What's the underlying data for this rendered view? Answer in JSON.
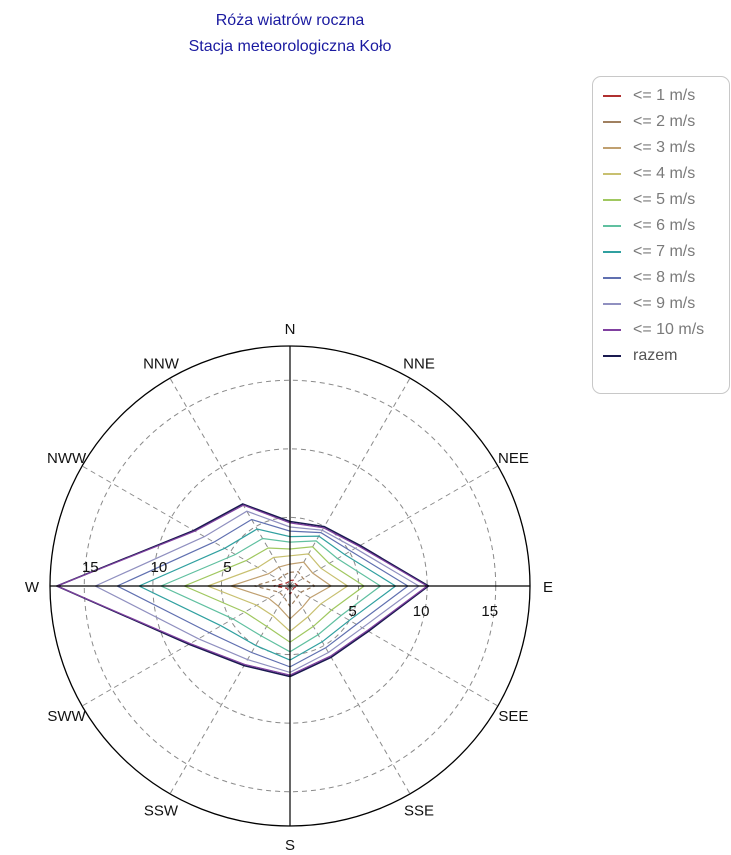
{
  "title_line1": "Róża wiatrów roczna",
  "title_line2": "Stacja meteorologiczna Koło",
  "chart_data": {
    "type": "radar",
    "directions": [
      "N",
      "NNE",
      "NEE",
      "E",
      "SEE",
      "SSE",
      "S",
      "SSW",
      "SWW",
      "W",
      "NWW",
      "NNW"
    ],
    "radial_ticks": [
      5,
      10,
      15
    ],
    "rmax": 17.5,
    "grid": true,
    "legend_position": "top-right",
    "series": [
      {
        "name": "<= 1 m/s",
        "color": "#b03030",
        "values": [
          0.4,
          0.5,
          0.4,
          0.6,
          0.3,
          0.4,
          0.6,
          0.3,
          0.3,
          1.2,
          0.4,
          0.3
        ]
      },
      {
        "name": "<= 2 m/s",
        "color": "#a08060",
        "values": [
          1.0,
          1.2,
          1.1,
          1.8,
          0.9,
          1.0,
          1.5,
          0.9,
          0.9,
          2.6,
          1.0,
          0.9
        ]
      },
      {
        "name": "<= 3 m/s",
        "color": "#c0a070",
        "values": [
          1.6,
          2.0,
          1.9,
          3.0,
          1.7,
          1.8,
          2.4,
          1.7,
          1.8,
          4.3,
          1.8,
          1.6
        ]
      },
      {
        "name": "<= 4 m/s",
        "color": "#c8c070",
        "values": [
          2.2,
          2.7,
          2.6,
          4.2,
          2.6,
          2.6,
          3.3,
          2.5,
          2.8,
          6.0,
          2.7,
          2.4
        ]
      },
      {
        "name": "<= 5 m/s",
        "color": "#a0c860",
        "values": [
          2.7,
          3.3,
          3.3,
          5.4,
          3.5,
          3.4,
          4.1,
          3.4,
          3.8,
          7.7,
          3.7,
          3.2
        ]
      },
      {
        "name": "<= 6 m/s",
        "color": "#60c0a0",
        "values": [
          3.2,
          3.8,
          4.0,
          6.6,
          4.3,
          4.1,
          4.8,
          4.2,
          4.8,
          9.4,
          4.6,
          4.0
        ]
      },
      {
        "name": "<= 7 m/s",
        "color": "#30a0a0",
        "values": [
          3.6,
          4.2,
          4.6,
          7.7,
          5.0,
          4.7,
          5.4,
          5.0,
          5.8,
          11.0,
          5.5,
          4.8
        ]
      },
      {
        "name": "<= 8 m/s",
        "color": "#6070b0",
        "values": [
          4.0,
          4.5,
          5.1,
          8.6,
          5.6,
          5.2,
          5.9,
          5.6,
          6.8,
          12.6,
          6.4,
          5.6
        ]
      },
      {
        "name": "<= 9 m/s",
        "color": "#9090c0",
        "values": [
          4.3,
          4.7,
          5.5,
          9.4,
          6.1,
          5.6,
          6.3,
          6.2,
          7.7,
          14.2,
          7.2,
          6.3
        ]
      },
      {
        "name": "<= 10 m/s",
        "color": "#8040a0",
        "values": [
          4.6,
          4.9,
          5.8,
          10.0,
          6.5,
          5.9,
          6.5,
          6.6,
          8.4,
          17.0,
          8.0,
          6.8
        ]
      },
      {
        "name": "razem",
        "color": "#1a1a50",
        "values": [
          4.7,
          5.0,
          5.9,
          10.1,
          6.6,
          6.0,
          6.6,
          6.7,
          8.5,
          17.0,
          8.1,
          6.9
        ]
      }
    ]
  }
}
